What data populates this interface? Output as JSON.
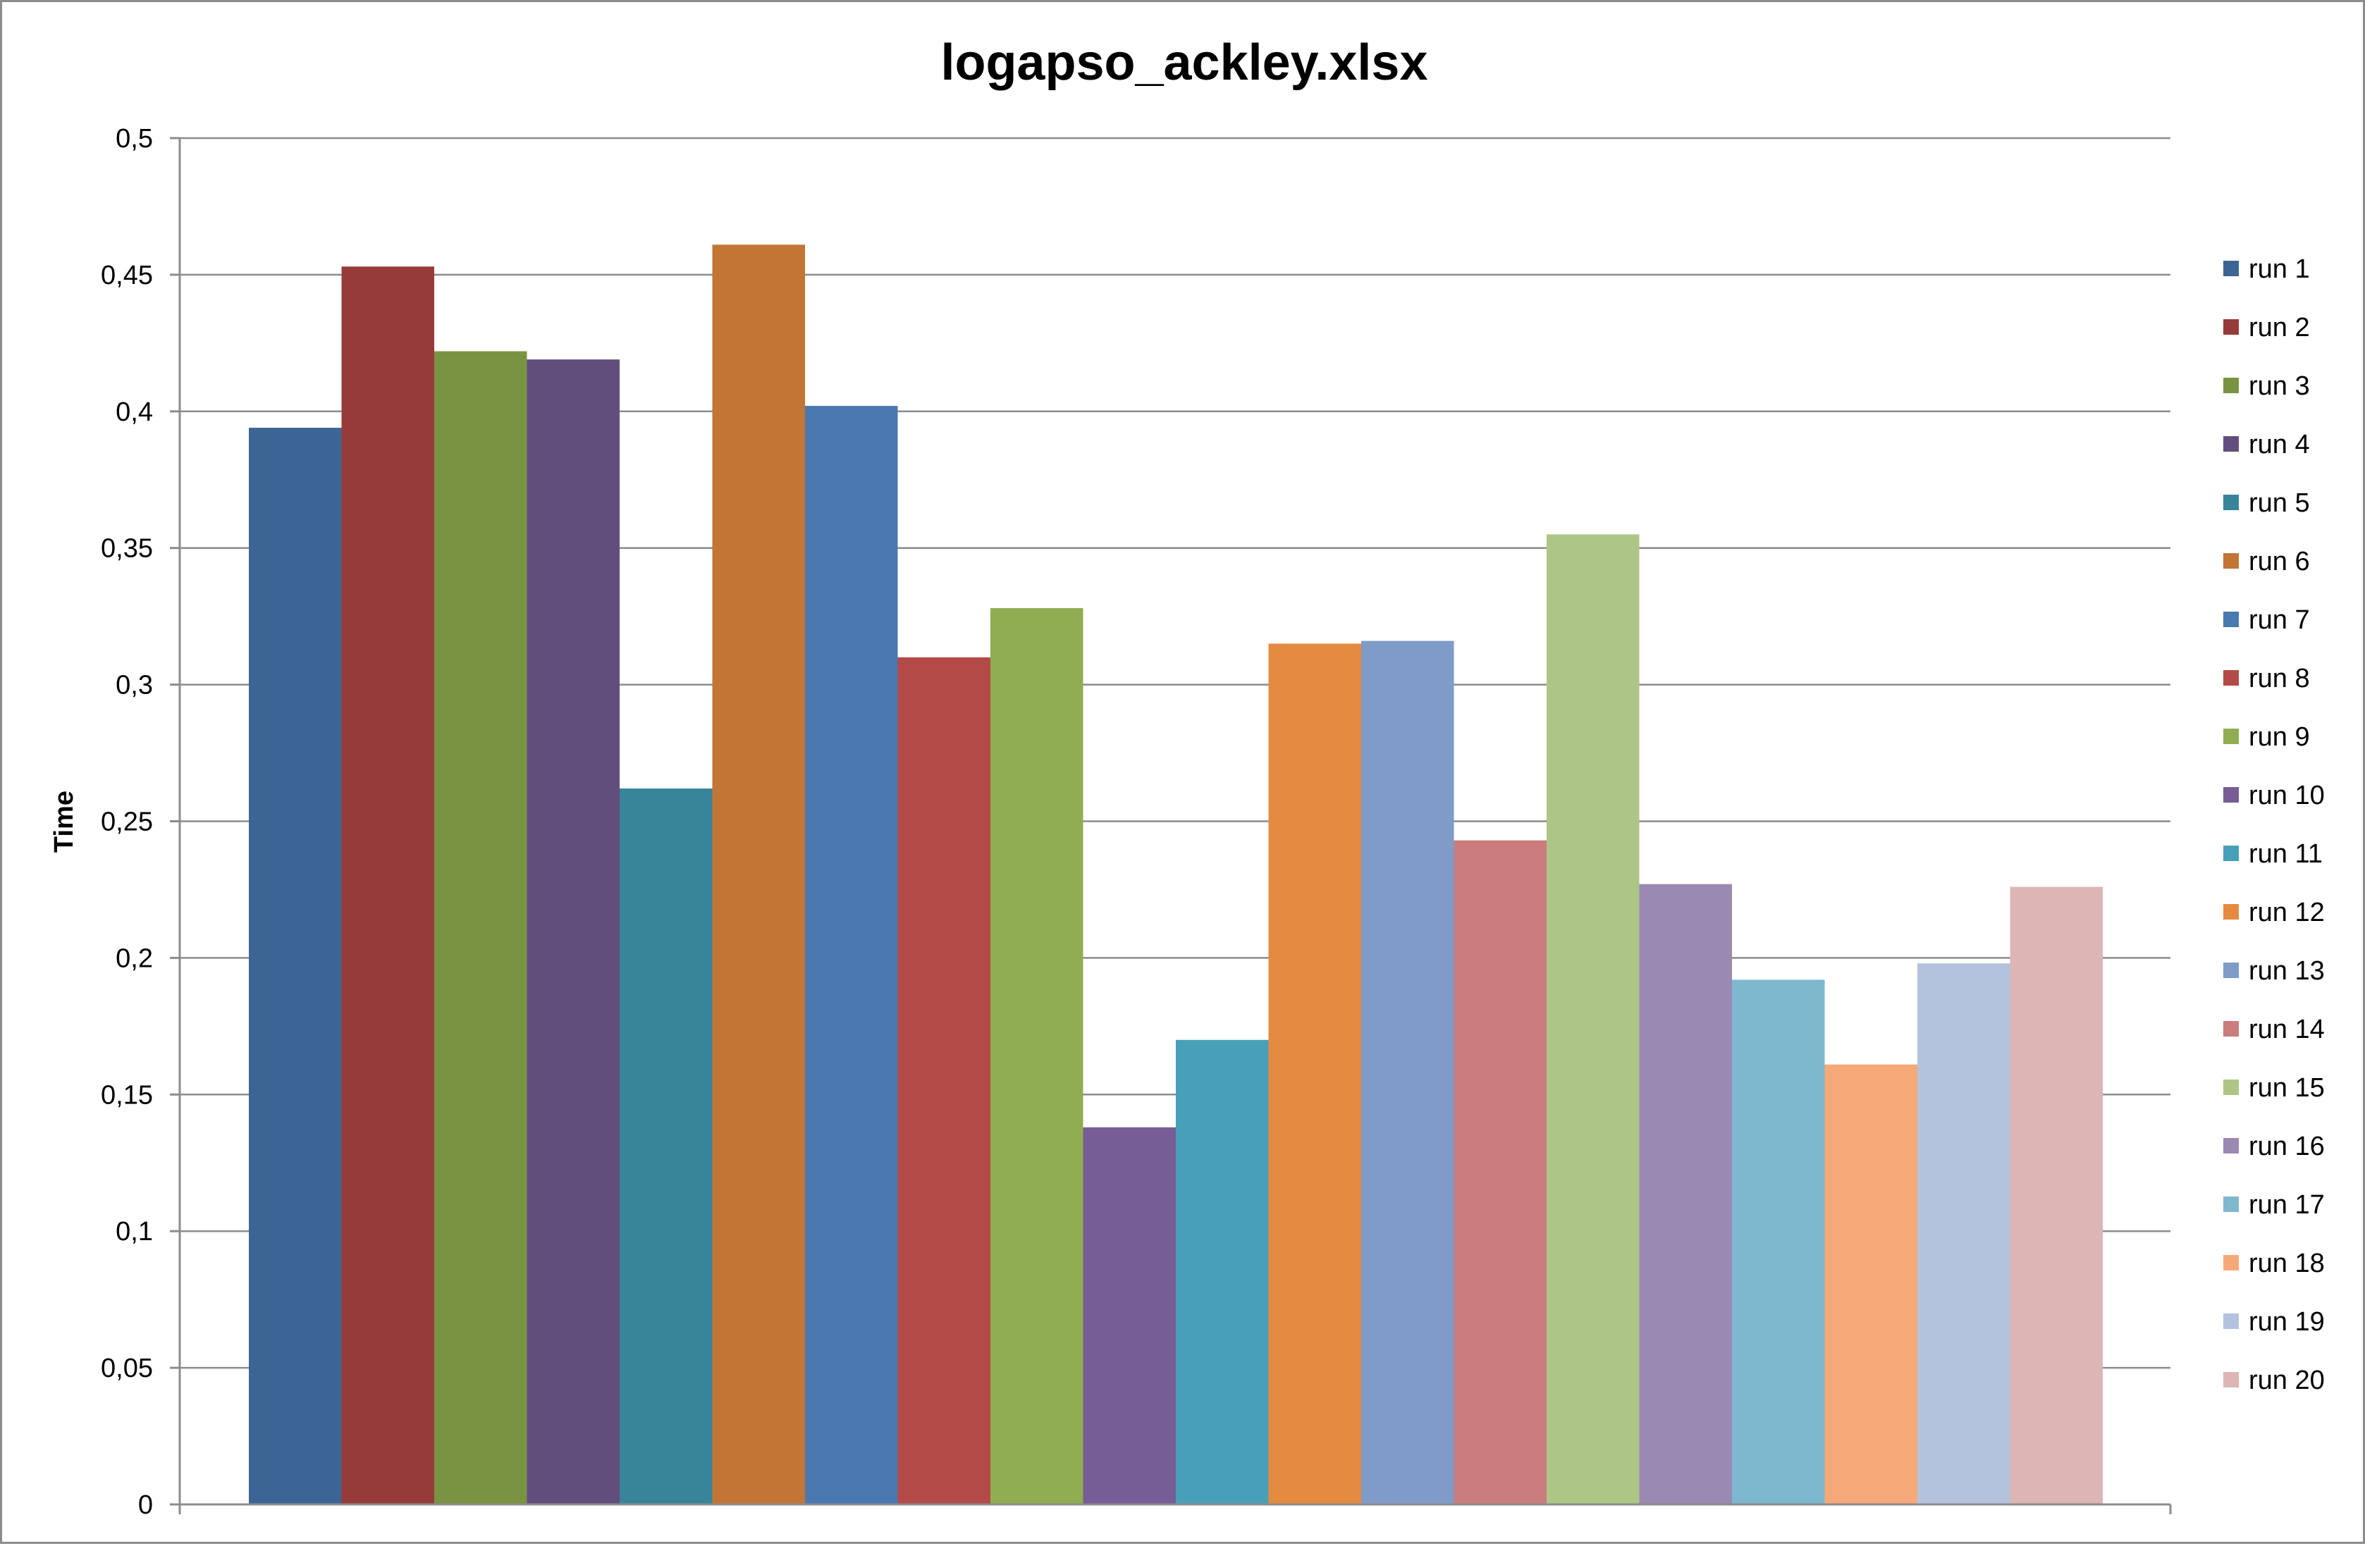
{
  "chart_data": {
    "type": "bar",
    "title": "logapso_ackley.xlsx",
    "xlabel": "",
    "ylabel": "Time",
    "ylim": [
      0,
      0.5
    ],
    "yticks": [
      0,
      0.05,
      0.1,
      0.15,
      0.2,
      0.25,
      0.3,
      0.35,
      0.4,
      0.45,
      0.5
    ],
    "ytick_labels": [
      "0",
      "0,05",
      "0,1",
      "0,15",
      "0,2",
      "0,25",
      "0,3",
      "0,35",
      "0,4",
      "0,45",
      "0,5"
    ],
    "grid": true,
    "legend_position": "right",
    "series": [
      {
        "name": "run 1",
        "values": [
          0.394
        ],
        "color": "#3C6596"
      },
      {
        "name": "run 2",
        "values": [
          0.453
        ],
        "color": "#963B3A"
      },
      {
        "name": "run 3",
        "values": [
          0.422
        ],
        "color": "#7A9343"
      },
      {
        "name": "run 4",
        "values": [
          0.419
        ],
        "color": "#624E7C"
      },
      {
        "name": "run 5",
        "values": [
          0.262
        ],
        "color": "#38859A"
      },
      {
        "name": "run 6",
        "values": [
          0.461
        ],
        "color": "#C27535"
      },
      {
        "name": "run 7",
        "values": [
          0.402
        ],
        "color": "#4A78B0"
      },
      {
        "name": "run 8",
        "values": [
          0.31
        ],
        "color": "#B34A48"
      },
      {
        "name": "run 9",
        "values": [
          0.328
        ],
        "color": "#90AD52"
      },
      {
        "name": "run 10",
        "values": [
          0.138
        ],
        "color": "#775D95"
      },
      {
        "name": "run 11",
        "values": [
          0.17
        ],
        "color": "#47A0B7"
      },
      {
        "name": "run 12",
        "values": [
          0.315
        ],
        "color": "#E58B41"
      },
      {
        "name": "run 13",
        "values": [
          0.316
        ],
        "color": "#7F9BC7"
      },
      {
        "name": "run 14",
        "values": [
          0.243
        ],
        "color": "#CA7D7C"
      },
      {
        "name": "run 15",
        "values": [
          0.355
        ],
        "color": "#ADC686"
      },
      {
        "name": "run 16",
        "values": [
          0.227
        ],
        "color": "#9A89B2"
      },
      {
        "name": "run 17",
        "values": [
          0.192
        ],
        "color": "#7EB8CE"
      },
      {
        "name": "run 18",
        "values": [
          0.161
        ],
        "color": "#F6A978"
      },
      {
        "name": "run 19",
        "values": [
          0.198
        ],
        "color": "#B4C3DD"
      },
      {
        "name": "run 20",
        "values": [
          0.226
        ],
        "color": "#DDB5B5"
      }
    ],
    "colors": {
      "gridline": "#8c8c8c",
      "axis": "#8c8c8c",
      "frame": "#8c8c8c",
      "text": "#000000",
      "background": "#ffffff"
    }
  }
}
